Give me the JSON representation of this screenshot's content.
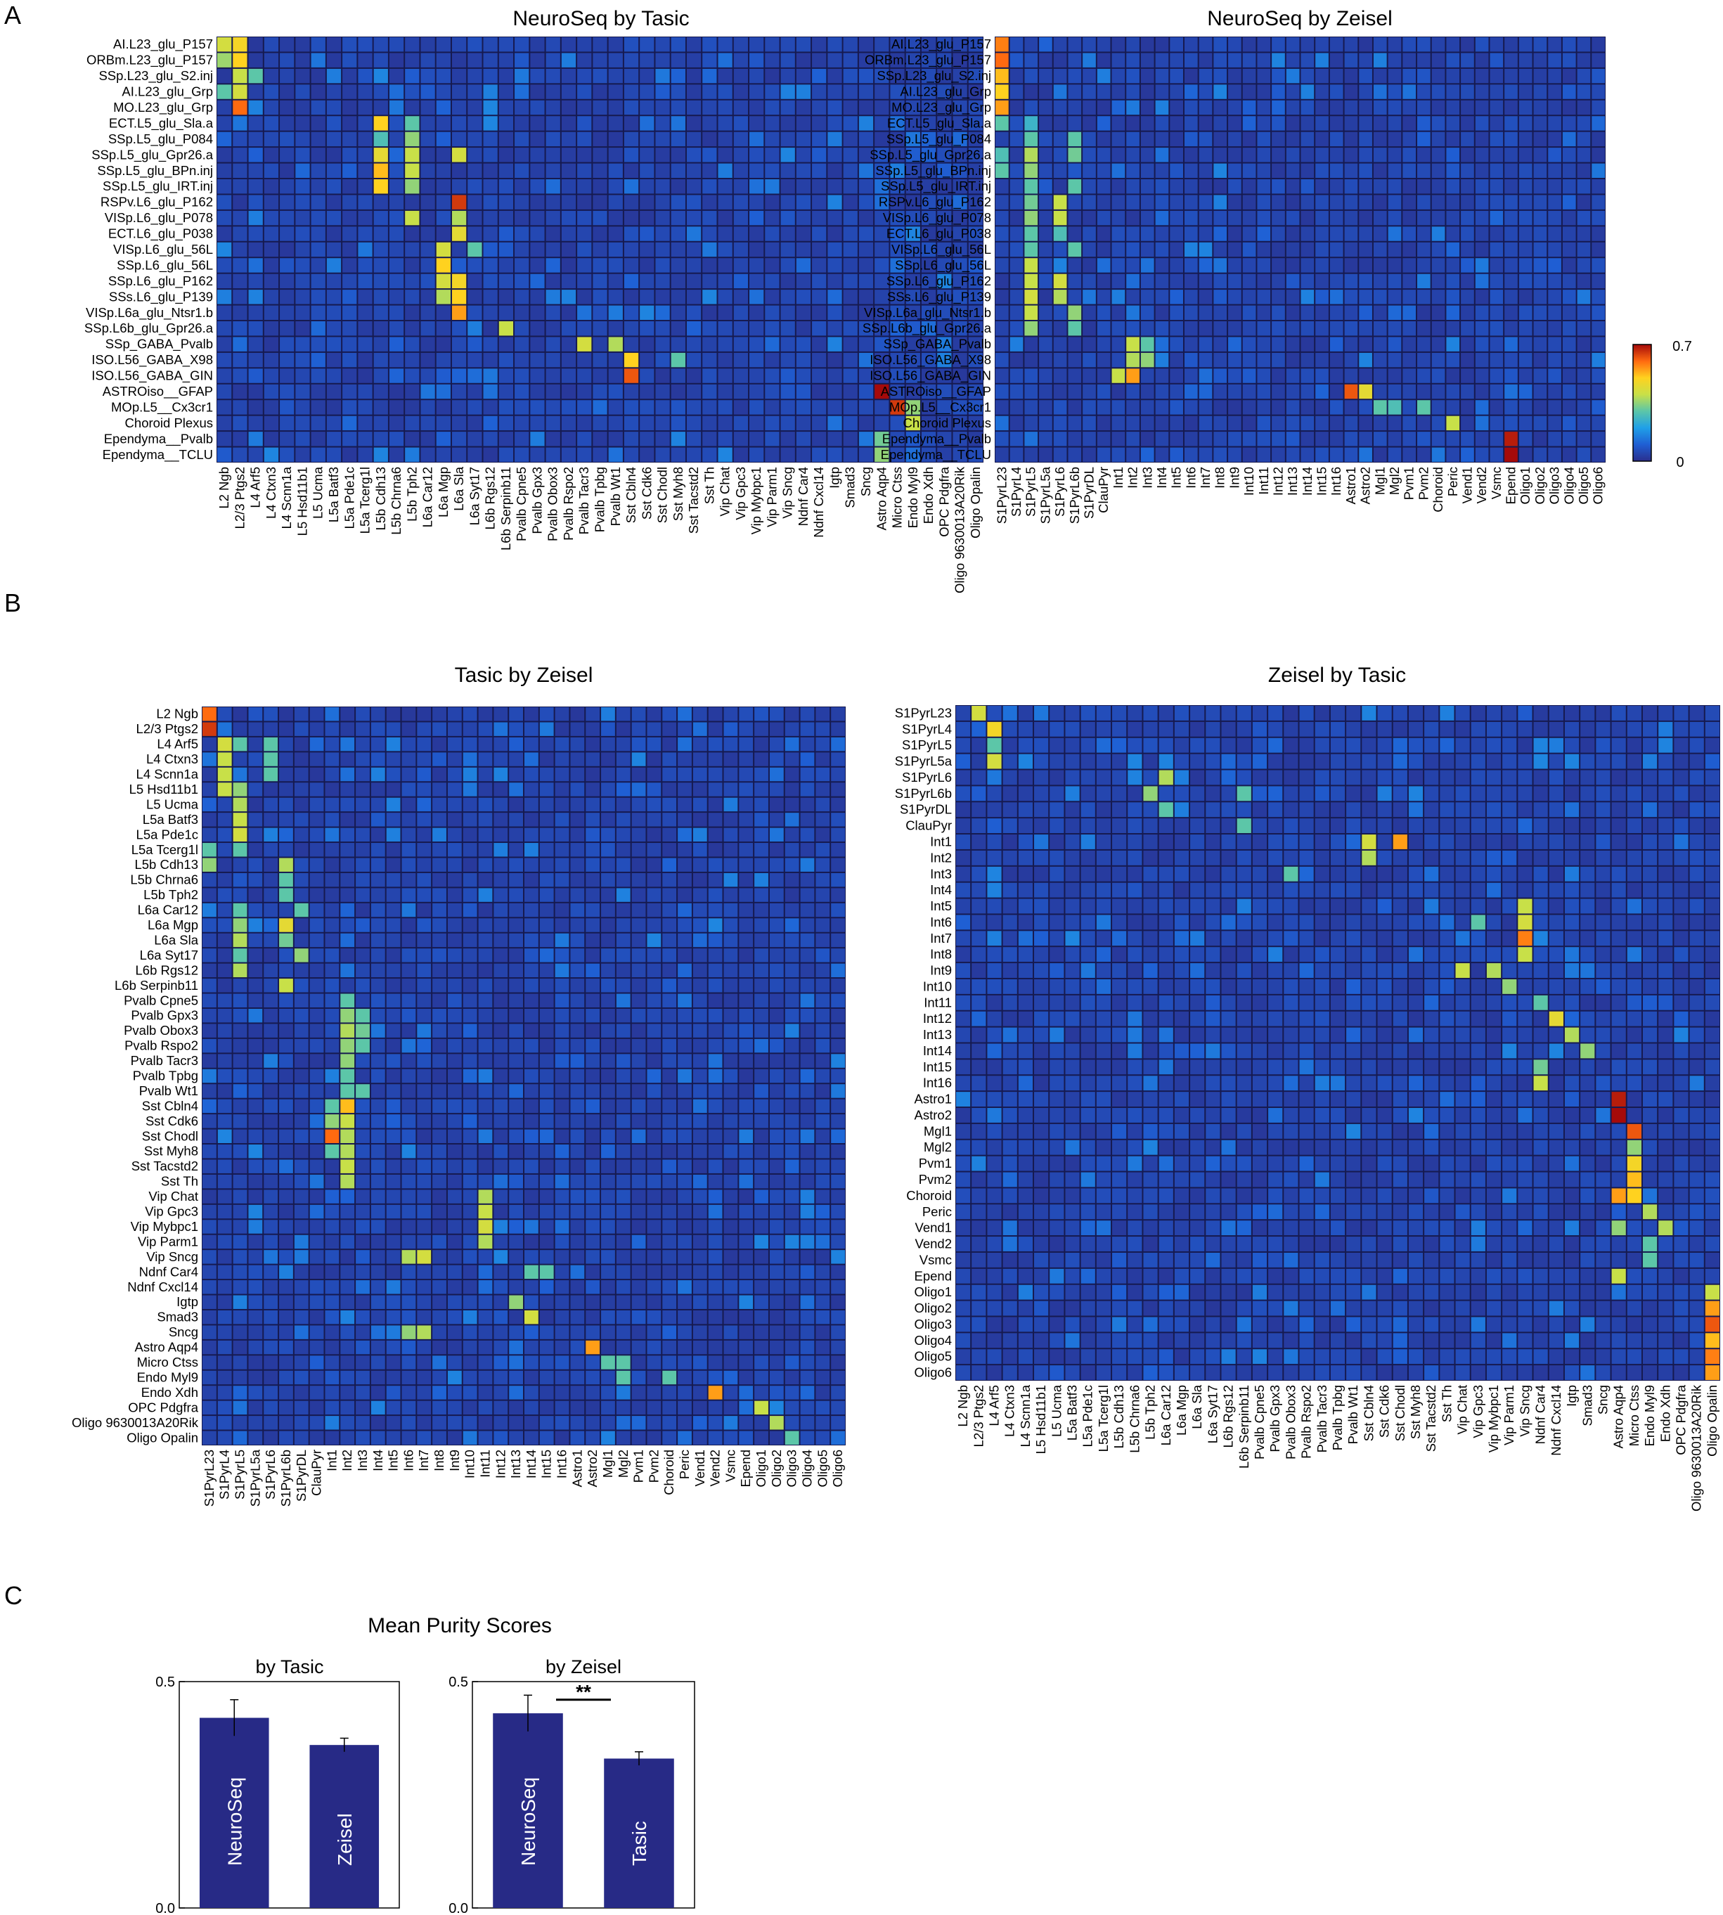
{
  "panels": {
    "a": "A",
    "b": "B",
    "c": "C"
  },
  "colorbar": {
    "min": "0",
    "max": "0.7",
    "colors": [
      "#2a2e8c",
      "#1f5fd4",
      "#1fa0e8",
      "#5cc6a8",
      "#c8e048",
      "#ffd21f",
      "#ff6a10",
      "#a50a0a"
    ]
  },
  "colors": {
    "background": "#283087",
    "grid": "#161a50",
    "bar": "#272a86"
  },
  "heatmap_rows": {
    "neuroseq": [
      "AI.L23_glu_P157",
      "ORBm.L23_glu_P157",
      "SSp.L23_glu_S2.inj",
      "AI.L23_glu_Grp",
      "MO.L23_glu_Grp",
      "ECT.L5_glu_Sla.a",
      "SSp.L5_glu_P084",
      "SSp.L5_glu_Gpr26.a",
      "SSp.L5_glu_BPn.inj",
      "SSp.L5_glu_IRT.inj",
      "RSPv.L6_glu_P162",
      "VISp.L6_glu_P078",
      "ECT.L6_glu_P038",
      "VISp.L6_glu_56L",
      "SSp.L6_glu_56L",
      "SSp.L6_glu_P162",
      "SSs.L6_glu_P139",
      "VISp.L6a_glu_Ntsr1.b",
      "SSp.L6b_glu_Gpr26.a",
      "SSp_GABA_Pvalb",
      "ISO.L56_GABA_X98",
      "ISO.L56_GABA_GIN",
      "ASTROiso__GFAP",
      "MOp.L5__Cx3cr1",
      "Choroid Plexus",
      "Ependyma__Pvalb",
      "Ependyma__TCLU"
    ],
    "tasic": [
      "L2 Ngb",
      "L2/3 Ptgs2",
      "L4 Arf5",
      "L4 Ctxn3",
      "L4 Scnn1a",
      "L5 Hsd11b1",
      "L5 Ucma",
      "L5a Batf3",
      "L5a Pde1c",
      "L5a Tcerg1l",
      "L5b Cdh13",
      "L5b Chrna6",
      "L5b Tph2",
      "L6a Car12",
      "L6a Mgp",
      "L6a Sla",
      "L6a Syt17",
      "L6b Rgs12",
      "L6b Serpinb11",
      "Pvalb Cpne5",
      "Pvalb Gpx3",
      "Pvalb Obox3",
      "Pvalb Rspo2",
      "Pvalb Tacr3",
      "Pvalb Tpbg",
      "Pvalb Wt1",
      "Sst Cbln4",
      "Sst Cdk6",
      "Sst Chodl",
      "Sst Myh8",
      "Sst Tacstd2",
      "Sst Th",
      "Vip Chat",
      "Vip Gpc3",
      "Vip Mybpc1",
      "Vip Parm1",
      "Vip Sncg",
      "Ndnf Car4",
      "Ndnf Cxcl14",
      "Igtp",
      "Smad3",
      "Sncg",
      "Astro Aqp4",
      "Micro Ctss",
      "Endo Myl9",
      "Endo Xdh",
      "OPC Pdgfra",
      "Oligo 9630013A20Rik",
      "Oligo Opalin"
    ],
    "zeisel": [
      "S1PyrL23",
      "S1PyrL4",
      "S1PyrL5",
      "S1PyrL5a",
      "S1PyrL6",
      "S1PyrL6b",
      "S1PyrDL",
      "ClauPyr",
      "Int1",
      "Int2",
      "Int3",
      "Int4",
      "Int5",
      "Int6",
      "Int7",
      "Int8",
      "Int9",
      "Int10",
      "Int11",
      "Int12",
      "Int13",
      "Int14",
      "Int15",
      "Int16",
      "Astro1",
      "Astro2",
      "Mgl1",
      "Mgl2",
      "Pvm1",
      "Pvm2",
      "Choroid",
      "Peric",
      "Vend1",
      "Vend2",
      "Vsmc",
      "Epend",
      "Oligo1",
      "Oligo2",
      "Oligo3",
      "Oligo4",
      "Oligo5",
      "Oligo6"
    ]
  },
  "chart_data": [
    {
      "type": "heatmap",
      "title": "NeuroSeq by Tasic",
      "rows": "neuroseq",
      "cols": "tasic",
      "range": [
        0,
        0.7
      ],
      "hot": [
        [
          0,
          0,
          0.42
        ],
        [
          0,
          1,
          0.48
        ],
        [
          1,
          0,
          0.36
        ],
        [
          1,
          1,
          0.5
        ],
        [
          2,
          1,
          0.4
        ],
        [
          2,
          2,
          0.3
        ],
        [
          3,
          0,
          0.3
        ],
        [
          3,
          1,
          0.42
        ],
        [
          4,
          1,
          0.6
        ],
        [
          5,
          10,
          0.5
        ],
        [
          5,
          12,
          0.3
        ],
        [
          6,
          10,
          0.28
        ],
        [
          6,
          12,
          0.35
        ],
        [
          7,
          10,
          0.45
        ],
        [
          7,
          12,
          0.4
        ],
        [
          7,
          15,
          0.42
        ],
        [
          8,
          10,
          0.52
        ],
        [
          8,
          12,
          0.4
        ],
        [
          9,
          10,
          0.5
        ],
        [
          9,
          12,
          0.35
        ],
        [
          10,
          15,
          0.65
        ],
        [
          11,
          12,
          0.4
        ],
        [
          11,
          15,
          0.38
        ],
        [
          12,
          15,
          0.45
        ],
        [
          13,
          14,
          0.42
        ],
        [
          13,
          16,
          0.3
        ],
        [
          14,
          14,
          0.5
        ],
        [
          15,
          14,
          0.42
        ],
        [
          15,
          15,
          0.48
        ],
        [
          16,
          14,
          0.38
        ],
        [
          16,
          15,
          0.5
        ],
        [
          17,
          15,
          0.55
        ],
        [
          18,
          18,
          0.4
        ],
        [
          19,
          23,
          0.42
        ],
        [
          19,
          25,
          0.38
        ],
        [
          20,
          26,
          0.5
        ],
        [
          20,
          29,
          0.3
        ],
        [
          21,
          26,
          0.62
        ],
        [
          22,
          42,
          0.7
        ],
        [
          23,
          43,
          0.65
        ],
        [
          23,
          44,
          0.35
        ],
        [
          24,
          44,
          0.4
        ],
        [
          25,
          42,
          0.32
        ],
        [
          26,
          42,
          0.35
        ]
      ]
    },
    {
      "type": "heatmap",
      "title": "NeuroSeq by Zeisel",
      "rows": "neuroseq",
      "cols": "zeisel",
      "range": [
        0,
        0.7
      ],
      "hot": [
        [
          0,
          0,
          0.58
        ],
        [
          1,
          0,
          0.6
        ],
        [
          2,
          0,
          0.52
        ],
        [
          3,
          0,
          0.5
        ],
        [
          4,
          0,
          0.55
        ],
        [
          5,
          0,
          0.3
        ],
        [
          5,
          2,
          0.25
        ],
        [
          6,
          2,
          0.3
        ],
        [
          6,
          5,
          0.3
        ],
        [
          7,
          0,
          0.28
        ],
        [
          7,
          2,
          0.38
        ],
        [
          7,
          5,
          0.32
        ],
        [
          8,
          0,
          0.3
        ],
        [
          8,
          2,
          0.35
        ],
        [
          9,
          2,
          0.3
        ],
        [
          9,
          5,
          0.3
        ],
        [
          10,
          2,
          0.32
        ],
        [
          10,
          4,
          0.4
        ],
        [
          11,
          2,
          0.35
        ],
        [
          11,
          4,
          0.4
        ],
        [
          12,
          2,
          0.3
        ],
        [
          12,
          4,
          0.28
        ],
        [
          13,
          2,
          0.3
        ],
        [
          13,
          5,
          0.3
        ],
        [
          14,
          2,
          0.4
        ],
        [
          15,
          2,
          0.4
        ],
        [
          15,
          4,
          0.42
        ],
        [
          16,
          2,
          0.42
        ],
        [
          16,
          4,
          0.38
        ],
        [
          17,
          2,
          0.4
        ],
        [
          17,
          5,
          0.35
        ],
        [
          18,
          2,
          0.35
        ],
        [
          18,
          5,
          0.3
        ],
        [
          19,
          9,
          0.4
        ],
        [
          19,
          10,
          0.3
        ],
        [
          20,
          9,
          0.38
        ],
        [
          20,
          10,
          0.35
        ],
        [
          21,
          8,
          0.4
        ],
        [
          21,
          9,
          0.55
        ],
        [
          22,
          24,
          0.62
        ],
        [
          22,
          25,
          0.45
        ],
        [
          23,
          26,
          0.3
        ],
        [
          23,
          27,
          0.28
        ],
        [
          23,
          29,
          0.3
        ],
        [
          24,
          31,
          0.4
        ],
        [
          25,
          35,
          0.68
        ],
        [
          26,
          35,
          0.7
        ]
      ]
    },
    {
      "type": "heatmap",
      "title": "Tasic by Zeisel",
      "rows": "tasic",
      "cols": "zeisel",
      "range": [
        0,
        0.7
      ],
      "hot": [
        [
          0,
          0,
          0.6
        ],
        [
          1,
          0,
          0.65
        ],
        [
          2,
          1,
          0.42
        ],
        [
          2,
          2,
          0.3
        ],
        [
          2,
          4,
          0.3
        ],
        [
          3,
          1,
          0.4
        ],
        [
          3,
          4,
          0.3
        ],
        [
          4,
          1,
          0.4
        ],
        [
          4,
          4,
          0.3
        ],
        [
          5,
          1,
          0.4
        ],
        [
          5,
          2,
          0.35
        ],
        [
          6,
          2,
          0.38
        ],
        [
          7,
          2,
          0.4
        ],
        [
          8,
          2,
          0.42
        ],
        [
          9,
          0,
          0.3
        ],
        [
          9,
          2,
          0.3
        ],
        [
          10,
          0,
          0.35
        ],
        [
          10,
          5,
          0.38
        ],
        [
          11,
          5,
          0.3
        ],
        [
          12,
          5,
          0.3
        ],
        [
          13,
          2,
          0.3
        ],
        [
          13,
          6,
          0.3
        ],
        [
          14,
          2,
          0.35
        ],
        [
          14,
          5,
          0.45
        ],
        [
          15,
          2,
          0.38
        ],
        [
          15,
          5,
          0.32
        ],
        [
          16,
          2,
          0.3
        ],
        [
          16,
          6,
          0.35
        ],
        [
          17,
          2,
          0.38
        ],
        [
          18,
          5,
          0.4
        ],
        [
          19,
          9,
          0.3
        ],
        [
          20,
          9,
          0.35
        ],
        [
          20,
          10,
          0.3
        ],
        [
          21,
          9,
          0.38
        ],
        [
          21,
          10,
          0.32
        ],
        [
          22,
          9,
          0.35
        ],
        [
          22,
          10,
          0.3
        ],
        [
          23,
          9,
          0.35
        ],
        [
          24,
          9,
          0.3
        ],
        [
          25,
          9,
          0.3
        ],
        [
          25,
          10,
          0.3
        ],
        [
          26,
          8,
          0.3
        ],
        [
          26,
          9,
          0.52
        ],
        [
          27,
          8,
          0.35
        ],
        [
          27,
          9,
          0.4
        ],
        [
          28,
          8,
          0.6
        ],
        [
          28,
          9,
          0.38
        ],
        [
          29,
          8,
          0.3
        ],
        [
          29,
          9,
          0.38
        ],
        [
          30,
          9,
          0.4
        ],
        [
          31,
          9,
          0.38
        ],
        [
          32,
          18,
          0.38
        ],
        [
          33,
          18,
          0.4
        ],
        [
          34,
          18,
          0.42
        ],
        [
          35,
          18,
          0.38
        ],
        [
          36,
          13,
          0.38
        ],
        [
          36,
          14,
          0.42
        ],
        [
          37,
          21,
          0.3
        ],
        [
          37,
          22,
          0.3
        ],
        [
          39,
          20,
          0.35
        ],
        [
          40,
          21,
          0.42
        ],
        [
          41,
          13,
          0.35
        ],
        [
          41,
          14,
          0.38
        ],
        [
          42,
          25,
          0.55
        ],
        [
          43,
          26,
          0.3
        ],
        [
          43,
          27,
          0.3
        ],
        [
          44,
          27,
          0.3
        ],
        [
          44,
          30,
          0.3
        ],
        [
          45,
          33,
          0.55
        ],
        [
          46,
          36,
          0.4
        ],
        [
          47,
          37,
          0.38
        ],
        [
          48,
          38,
          0.3
        ]
      ]
    },
    {
      "type": "heatmap",
      "title": "Zeisel by Tasic",
      "rows": "zeisel",
      "cols": "tasic",
      "range": [
        0,
        0.7
      ],
      "hot": [
        [
          0,
          1,
          0.42
        ],
        [
          1,
          2,
          0.48
        ],
        [
          2,
          2,
          0.3
        ],
        [
          3,
          2,
          0.42
        ],
        [
          4,
          13,
          0.38
        ],
        [
          5,
          12,
          0.35
        ],
        [
          5,
          18,
          0.3
        ],
        [
          6,
          13,
          0.3
        ],
        [
          7,
          18,
          0.3
        ],
        [
          8,
          26,
          0.42
        ],
        [
          8,
          28,
          0.55
        ],
        [
          9,
          26,
          0.38
        ],
        [
          10,
          21,
          0.3
        ],
        [
          12,
          36,
          0.4
        ],
        [
          13,
          33,
          0.3
        ],
        [
          13,
          36,
          0.42
        ],
        [
          14,
          36,
          0.58
        ],
        [
          15,
          36,
          0.4
        ],
        [
          16,
          32,
          0.4
        ],
        [
          16,
          34,
          0.38
        ],
        [
          17,
          35,
          0.35
        ],
        [
          18,
          37,
          0.3
        ],
        [
          19,
          38,
          0.45
        ],
        [
          20,
          39,
          0.38
        ],
        [
          21,
          40,
          0.35
        ],
        [
          22,
          37,
          0.32
        ],
        [
          23,
          37,
          0.4
        ],
        [
          24,
          42,
          0.68
        ],
        [
          25,
          42,
          0.7
        ],
        [
          26,
          43,
          0.62
        ],
        [
          27,
          43,
          0.35
        ],
        [
          28,
          43,
          0.48
        ],
        [
          29,
          43,
          0.52
        ],
        [
          30,
          42,
          0.55
        ],
        [
          30,
          43,
          0.5
        ],
        [
          31,
          44,
          0.38
        ],
        [
          32,
          42,
          0.35
        ],
        [
          32,
          45,
          0.38
        ],
        [
          33,
          44,
          0.3
        ],
        [
          34,
          44,
          0.3
        ],
        [
          35,
          42,
          0.4
        ],
        [
          36,
          48,
          0.4
        ],
        [
          37,
          48,
          0.55
        ],
        [
          38,
          48,
          0.62
        ],
        [
          39,
          48,
          0.52
        ],
        [
          40,
          48,
          0.58
        ],
        [
          41,
          48,
          0.55
        ]
      ]
    },
    {
      "type": "bar",
      "suptitle": "Mean Purity Scores",
      "title": "by Tasic",
      "categories": [
        "NeuroSeq",
        "Zeisel"
      ],
      "values": [
        0.42,
        0.36
      ],
      "errors": [
        0.04,
        0.015
      ],
      "ylim": [
        0,
        0.5
      ],
      "yticks": [
        "0.0",
        "0.5"
      ]
    },
    {
      "type": "bar",
      "title": "by Zeisel",
      "categories": [
        "NeuroSeq",
        "Tasic"
      ],
      "values": [
        0.43,
        0.33
      ],
      "errors": [
        0.04,
        0.015
      ],
      "ylim": [
        0,
        0.5
      ],
      "yticks": [
        "0.0",
        "0.5"
      ],
      "annotation": "**"
    }
  ]
}
